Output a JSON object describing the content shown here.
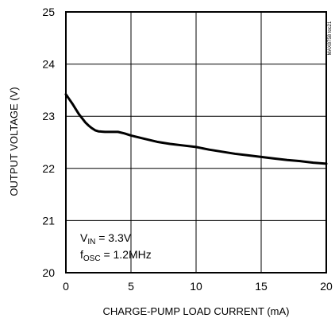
{
  "chart_data": {
    "type": "line",
    "xlabel": "CHARGE-PUMP LOAD CURRENT (mA)",
    "ylabel": "OUTPUT VOLTAGE (V)",
    "xlim": [
      0,
      20
    ],
    "ylim": [
      20,
      25
    ],
    "xticks": [
      "0",
      "5",
      "10",
      "15",
      "20"
    ],
    "yticks": [
      "20",
      "21",
      "22",
      "23",
      "24",
      "25"
    ],
    "grid": true,
    "annotation": {
      "line1": {
        "prefix": "V",
        "sub": "IN",
        "suffix": " = 3.3V"
      },
      "line2": {
        "prefix": "f",
        "sub": "OSC",
        "suffix": " = 1.2MHz"
      }
    },
    "watermark": "MAX8758 toc21",
    "line_color": "#000000",
    "series": [
      {
        "x": [
          0,
          0.25,
          0.5,
          0.75,
          1.0,
          1.25,
          1.5,
          1.75,
          2.0,
          2.25,
          2.5,
          3.0,
          3.5,
          4.0,
          4.5,
          5.0,
          6.0,
          7.0,
          8.0,
          9.0,
          10.0,
          11.0,
          12.0,
          13.0,
          14.0,
          15.0,
          16.0,
          17.0,
          18.0,
          19.0,
          20.0
        ],
        "y": [
          23.42,
          23.33,
          23.24,
          23.14,
          23.04,
          22.96,
          22.88,
          22.82,
          22.77,
          22.73,
          22.71,
          22.7,
          22.7,
          22.7,
          22.67,
          22.63,
          22.57,
          22.51,
          22.47,
          22.44,
          22.41,
          22.36,
          22.32,
          22.28,
          22.25,
          22.22,
          22.19,
          22.16,
          22.14,
          22.11,
          22.09
        ]
      }
    ]
  }
}
